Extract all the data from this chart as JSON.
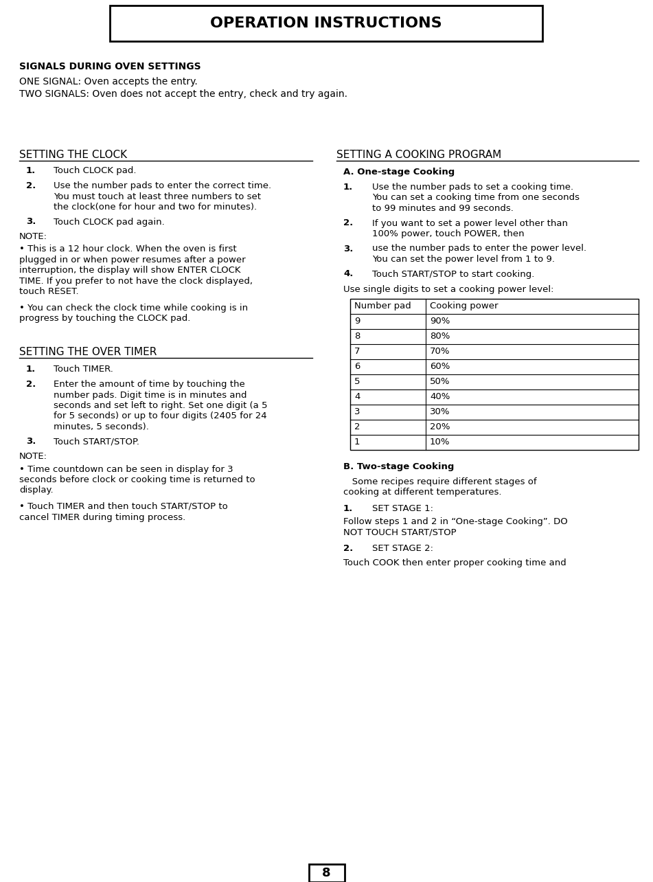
{
  "title": "OPERATION INSTRUCTIONS",
  "bg_color": "#ffffff",
  "signals_heading": "SIGNALS DURING OVEN SETTINGS",
  "signal1": "ONE SIGNAL: Oven accepts the entry.",
  "signal2": "TWO SIGNALS: Oven does not accept the entry, check and try again.",
  "left_heading": "SETTING THE CLOCK",
  "left_items": [
    [
      "1.",
      "Touch CLOCK pad."
    ],
    [
      "2.",
      "Use the number pads to enter the correct time.\nYou must touch at least three numbers to set\nthe clock(one for hour and two for minutes)."
    ],
    [
      "3.",
      "Touch CLOCK pad again."
    ]
  ],
  "left_note_head": "NOTE:",
  "left_note1": "• This is a 12 hour clock. When the oven is first\nplugged in or when power resumes after a power\ninterruption, the display will show ENTER CLOCK\nTIME. If you prefer to not have the clock displayed,\ntouch RESET.",
  "left_note2": "• You can check the clock time while cooking is in\nprogress by touching the CLOCK pad.",
  "left2_heading": "SETTING THE OVER TIMER",
  "left2_items": [
    [
      "1.",
      "Touch TIMER."
    ],
    [
      "2.",
      "Enter the amount of time by touching the\nnumber pads. Digit time is in minutes and\nseconds and set left to right. Set one digit (a 5\nfor 5 seconds) or up to four digits (2405 for 24\nminutes, 5 seconds)."
    ],
    [
      "3.",
      "Touch START/STOP."
    ]
  ],
  "left2_note_head": "NOTE:",
  "left2_note1": "• Time countdown can be seen in display for 3\nseconds before clock or cooking time is returned to\ndisplay.",
  "left2_note2": "• Touch TIMER and then touch START/STOP to\ncancel TIMER during timing process.",
  "right_heading": "SETTING A COOKING PROGRAM",
  "right_subhead_a": "A. One-stage Cooking",
  "right_items_a": [
    [
      "1.",
      "Use the number pads to set a cooking time.\nYou can set a cooking time from one seconds\nto 99 minutes and 99 seconds."
    ],
    [
      "2.",
      "If you want to set a power level other than\n100% power, touch POWER, then"
    ],
    [
      "3.",
      "use the number pads to enter the power level.\nYou can set the power level from 1 to 9."
    ],
    [
      "4.",
      "Touch START/STOP to start cooking."
    ]
  ],
  "table_intro": "Use single digits to set a cooking power level:",
  "table_headers": [
    "Number pad",
    "Cooking power"
  ],
  "table_rows": [
    [
      "9",
      "90%"
    ],
    [
      "8",
      "80%"
    ],
    [
      "7",
      "70%"
    ],
    [
      "6",
      "60%"
    ],
    [
      "5",
      "50%"
    ],
    [
      "4",
      "40%"
    ],
    [
      "3",
      "30%"
    ],
    [
      "2",
      "20%"
    ],
    [
      "1",
      "10%"
    ]
  ],
  "right_subhead_b": "B. Two-stage Cooking",
  "right_b_intro1": "   Some recipes require different stages of",
  "right_b_intro2": "cooking at different temperatures.",
  "right_items_b": [
    [
      "1.",
      "SET STAGE 1:"
    ],
    [
      "",
      "Follow steps 1 and 2 in “One-stage Cooking”. DO\nNOT TOUCH START/STOP"
    ],
    [
      "2.",
      "SET STAGE 2:"
    ],
    [
      "",
      "Touch COOK then enter proper cooking time and"
    ]
  ],
  "page_num": "8",
  "fig_w": 9.51,
  "fig_h": 12.84,
  "dpi": 100
}
